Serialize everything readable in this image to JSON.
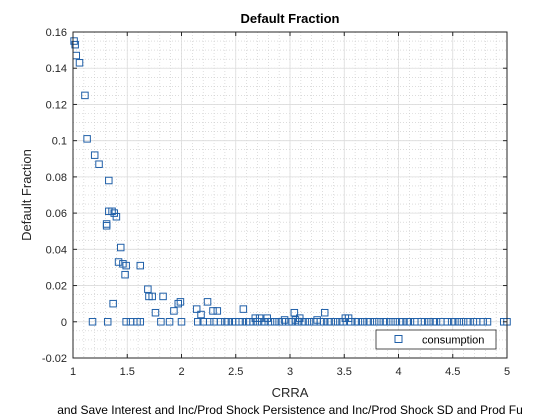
{
  "chart_data": {
    "type": "scatter",
    "title": "Default Fraction",
    "xlabel": "CRRA",
    "ylabel": "Default Fraction",
    "footer": "and Save Interest and Inc/Prod Shock Persistence and Inc/Prod Shock SD and Prod Fu",
    "xlim": [
      1,
      5
    ],
    "ylim": [
      -0.02,
      0.16
    ],
    "xticks": [
      1,
      1.5,
      2,
      2.5,
      3,
      3.5,
      4,
      4.5,
      5
    ],
    "yticks": [
      -0.02,
      0,
      0.02,
      0.04,
      0.06,
      0.08,
      0.1,
      0.12,
      0.14,
      0.16
    ],
    "xtick_labels": [
      "1",
      "1.5",
      "2",
      "2.5",
      "3",
      "3.5",
      "4",
      "4.5",
      "5"
    ],
    "ytick_labels": [
      "-0.02",
      "0",
      "0.02",
      "0.04",
      "0.06",
      "0.08",
      "0.1",
      "0.12",
      "0.14",
      "0.16"
    ],
    "grid": true,
    "minor_grid": true,
    "legend_position": "bottom-right",
    "marker": "square",
    "marker_color": "#1f5fa8",
    "series": [
      {
        "name": "consumption",
        "points": [
          [
            1.01,
            0.155
          ],
          [
            1.02,
            0.153
          ],
          [
            1.03,
            0.147
          ],
          [
            1.06,
            0.143
          ],
          [
            1.11,
            0.125
          ],
          [
            1.13,
            0.101
          ],
          [
            1.2,
            0.092
          ],
          [
            1.24,
            0.087
          ],
          [
            1.31,
            0.054
          ],
          [
            1.31,
            0.053
          ],
          [
            1.33,
            0.078
          ],
          [
            1.33,
            0.061
          ],
          [
            1.36,
            0.061
          ],
          [
            1.38,
            0.06
          ],
          [
            1.4,
            0.058
          ],
          [
            1.44,
            0.041
          ],
          [
            1.42,
            0.033
          ],
          [
            1.46,
            0.032
          ],
          [
            1.49,
            0.031
          ],
          [
            1.48,
            0.026
          ],
          [
            1.62,
            0.031
          ],
          [
            1.37,
            0.01
          ],
          [
            1.69,
            0.018
          ],
          [
            1.7,
            0.014
          ],
          [
            1.73,
            0.014
          ],
          [
            1.76,
            0.005
          ],
          [
            1.83,
            0.014
          ],
          [
            1.93,
            0.006
          ],
          [
            1.97,
            0.01
          ],
          [
            1.99,
            0.011
          ],
          [
            2.14,
            0.007
          ],
          [
            2.18,
            0.004
          ],
          [
            2.24,
            0.011
          ],
          [
            2.29,
            0.006
          ],
          [
            2.33,
            0.006
          ],
          [
            2.57,
            0.007
          ],
          [
            3.04,
            0.005
          ],
          [
            3.32,
            0.005
          ],
          [
            2.68,
            0.002
          ],
          [
            2.72,
            0.002
          ],
          [
            2.79,
            0.002
          ],
          [
            2.95,
            0.001
          ],
          [
            3.05,
            0.001
          ],
          [
            3.09,
            0.002
          ],
          [
            3.51,
            0.002
          ],
          [
            3.54,
            0.002
          ],
          [
            3.25,
            0.001
          ],
          [
            1.18,
            0.0
          ],
          [
            1.32,
            0.0
          ],
          [
            1.49,
            0.0
          ],
          [
            1.53,
            0.0
          ],
          [
            1.59,
            0.0
          ],
          [
            1.62,
            0.0
          ],
          [
            1.81,
            0.0
          ],
          [
            1.89,
            0.0
          ],
          [
            2.0,
            0.0
          ],
          [
            2.15,
            0.0
          ],
          [
            2.2,
            0.0
          ],
          [
            2.26,
            0.0
          ],
          [
            2.3,
            0.0
          ],
          [
            2.36,
            0.0
          ],
          [
            2.4,
            0.0
          ],
          [
            2.43,
            0.0
          ],
          [
            2.47,
            0.0
          ],
          [
            2.5,
            0.0
          ],
          [
            2.53,
            0.0
          ],
          [
            2.56,
            0.0
          ],
          [
            2.6,
            0.0
          ],
          [
            2.63,
            0.0
          ],
          [
            2.66,
            0.0
          ],
          [
            2.7,
            0.0
          ],
          [
            2.74,
            0.0
          ],
          [
            2.77,
            0.0
          ],
          [
            2.82,
            0.0
          ],
          [
            2.86,
            0.0
          ],
          [
            2.9,
            0.0
          ],
          [
            2.93,
            0.0
          ],
          [
            2.99,
            0.0
          ],
          [
            3.02,
            0.0
          ],
          [
            3.07,
            0.0
          ],
          [
            3.11,
            0.0
          ],
          [
            3.14,
            0.0
          ],
          [
            3.18,
            0.0
          ],
          [
            3.22,
            0.0
          ],
          [
            3.28,
            0.0
          ],
          [
            3.31,
            0.0
          ],
          [
            3.35,
            0.0
          ],
          [
            3.38,
            0.0
          ],
          [
            3.42,
            0.0
          ],
          [
            3.46,
            0.0
          ],
          [
            3.49,
            0.0
          ],
          [
            3.56,
            0.0
          ],
          [
            3.6,
            0.0
          ],
          [
            3.63,
            0.0
          ],
          [
            3.67,
            0.0
          ],
          [
            3.71,
            0.0
          ],
          [
            3.74,
            0.0
          ],
          [
            3.78,
            0.0
          ],
          [
            3.82,
            0.0
          ],
          [
            3.86,
            0.0
          ],
          [
            3.89,
            0.0
          ],
          [
            3.93,
            0.0
          ],
          [
            3.97,
            0.0
          ],
          [
            4.01,
            0.0
          ],
          [
            4.04,
            0.0
          ],
          [
            4.08,
            0.0
          ],
          [
            4.11,
            0.0
          ],
          [
            4.15,
            0.0
          ],
          [
            4.21,
            0.0
          ],
          [
            4.24,
            0.0
          ],
          [
            4.28,
            0.0
          ],
          [
            4.32,
            0.0
          ],
          [
            4.35,
            0.0
          ],
          [
            4.39,
            0.0
          ],
          [
            4.45,
            0.0
          ],
          [
            4.49,
            0.0
          ],
          [
            4.52,
            0.0
          ],
          [
            4.56,
            0.0
          ],
          [
            4.6,
            0.0
          ],
          [
            4.64,
            0.0
          ],
          [
            4.69,
            0.0
          ],
          [
            4.72,
            0.0
          ],
          [
            4.78,
            0.0
          ],
          [
            4.82,
            0.0
          ],
          [
            4.97,
            0.0
          ],
          [
            5.0,
            0.0
          ]
        ]
      }
    ]
  }
}
